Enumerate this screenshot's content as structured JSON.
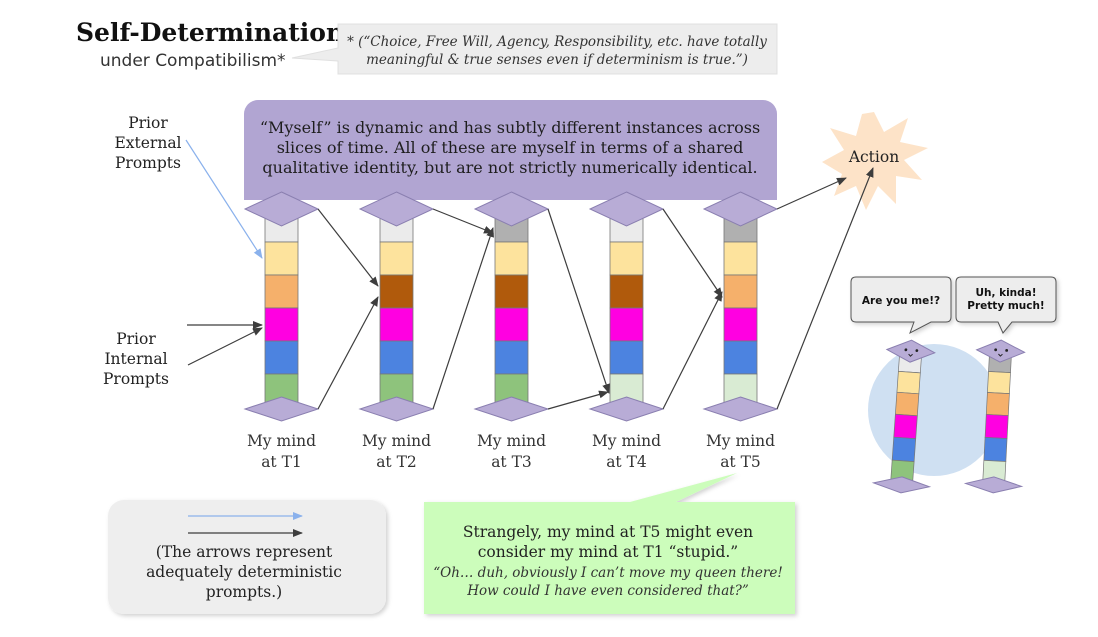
{
  "title": "Self-Determination",
  "subtitle": "under Compatibilism*",
  "footnote": {
    "line1": "* (“Choice, Free Will, Agency, Responsibility, etc. have totally",
    "line2": "meaningful & true senses even if determinism is true.”)"
  },
  "banner": {
    "line1": "“Myself” is dynamic and has subtly different instances across",
    "line2": "slices of time. All of these are myself in terms of a shared",
    "line3": "qualitative identity, but are not strictly numerically identical."
  },
  "external_prompts": [
    "Prior",
    "External",
    "Prompts"
  ],
  "internal_prompts": [
    "Prior",
    "Internal",
    "Prompts"
  ],
  "action_label": "Action",
  "minds": [
    {
      "line1": "My mind",
      "line2": "at T1"
    },
    {
      "line1": "My mind",
      "line2": "at T2"
    },
    {
      "line1": "My mind",
      "line2": "at T3"
    },
    {
      "line1": "My mind",
      "line2": "at T4"
    },
    {
      "line1": "My mind",
      "line2": "at T5"
    }
  ],
  "bubbles": {
    "left": "Are you me!?",
    "right_line1": "Uh, kinda!",
    "right_line2": "Pretty much!"
  },
  "legend": {
    "line1": "(The arrows represent",
    "line2": "adequately deterministic",
    "line3": "prompts.)"
  },
  "note": {
    "line1": "Strangely, my mind at T5 might even",
    "line2": "consider my mind at T1 “stupid.”",
    "quote1": "“Oh… duh, obviously I can’t move my queen there!",
    "quote2": "How could I have even considered that?”"
  },
  "colors": {
    "purple": "#b1a5d2",
    "diamond": "#b8acd6",
    "white_block": "#ebebeb",
    "grey_block": "#b0b0b0",
    "yellow_block": "#fde39d",
    "orange_block": "#f5b06b",
    "brown_block": "#b05a0c",
    "magenta_block": "#ff00e1",
    "blue_block": "#4c83e0",
    "green_block": "#8ec37c",
    "pale_green_block": "#d9ebd3",
    "arrow_blue": "#8ab1ec",
    "arrow_dark": "#3d3d3d",
    "note_green": "#ccfdbb",
    "legend_grey": "#eeeeee"
  }
}
